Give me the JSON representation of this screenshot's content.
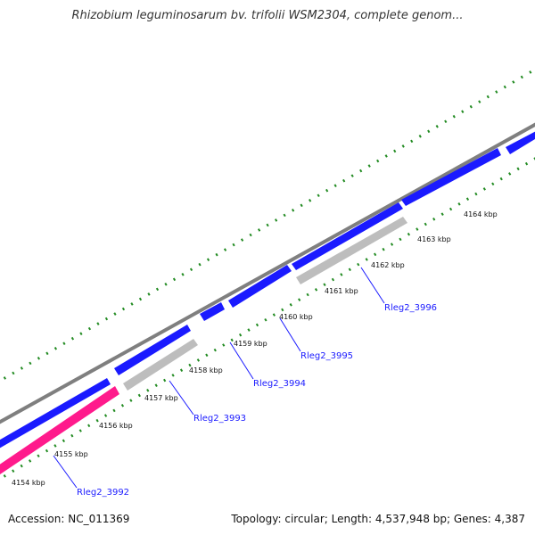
{
  "title": "Rhizobium leguminosarum bv. trifolii WSM2304, complete genom...",
  "footer": {
    "accession": "Accession: NC_011369",
    "summary": "Topology: circular; Length: 4,537,948 bp; Genes: 4,387"
  },
  "colors": {
    "forward_gene": "#1a1aff",
    "reverse_gene": "#bdbdbd",
    "rna_gene": "#ff1a8c",
    "backbone": "#7f7f7f",
    "gc_dots": "#228b22",
    "label": "#1a1aff"
  },
  "ticks": [
    {
      "label": "4154 kbp"
    },
    {
      "label": "4155 kbp"
    },
    {
      "label": "4156 kbp"
    },
    {
      "label": "4157 kbp"
    },
    {
      "label": "4158 kbp"
    },
    {
      "label": "4159 kbp"
    },
    {
      "label": "4160 kbp"
    },
    {
      "label": "4161 kbp"
    },
    {
      "label": "4162 kbp"
    },
    {
      "label": "4163 kbp"
    },
    {
      "label": "4164 kbp"
    }
  ],
  "gene_labels": [
    {
      "label": "Rleg2_3992"
    },
    {
      "label": "Rleg2_3993"
    },
    {
      "label": "Rleg2_3994"
    },
    {
      "label": "Rleg2_3995"
    },
    {
      "label": "Rleg2_3996"
    }
  ]
}
